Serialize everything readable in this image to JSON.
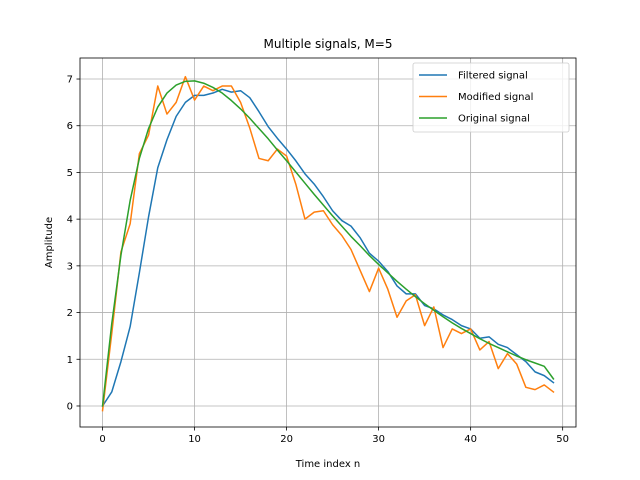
{
  "chart_data": {
    "type": "line",
    "title": "Multiple signals, M=5",
    "xlabel": "Time index n",
    "ylabel": "Amplitude",
    "xlim": [
      -2.45,
      51.45
    ],
    "ylim": [
      -0.45,
      7.45
    ],
    "xticks": [
      0,
      10,
      20,
      30,
      40,
      50
    ],
    "yticks": [
      0,
      1,
      2,
      3,
      4,
      5,
      6,
      7
    ],
    "grid": true,
    "legend_position": "top-right",
    "series": [
      {
        "name": "Filtered signal",
        "color": "#1f77b4",
        "x": [
          0,
          1,
          2,
          3,
          4,
          5,
          6,
          7,
          8,
          9,
          10,
          11,
          12,
          13,
          14,
          15,
          16,
          17,
          18,
          19,
          20,
          21,
          22,
          23,
          24,
          25,
          26,
          27,
          28,
          29,
          30,
          31,
          32,
          33,
          34,
          35,
          36,
          37,
          38,
          39,
          40,
          41,
          42,
          43,
          44,
          45,
          46,
          47,
          48,
          49
        ],
        "y": [
          0,
          0.3,
          0.95,
          1.7,
          2.85,
          4.05,
          5.1,
          5.7,
          6.2,
          6.5,
          6.65,
          6.65,
          6.7,
          6.78,
          6.72,
          6.75,
          6.6,
          6.3,
          5.98,
          5.73,
          5.5,
          5.25,
          4.97,
          4.75,
          4.48,
          4.18,
          3.97,
          3.85,
          3.6,
          3.27,
          3.1,
          2.88,
          2.57,
          2.4,
          2.4,
          2.15,
          2.08,
          1.95,
          1.85,
          1.72,
          1.65,
          1.45,
          1.48,
          1.32,
          1.25,
          1.1,
          0.95,
          0.73,
          0.65,
          0.5
        ]
      },
      {
        "name": "Modified signal",
        "color": "#ff7f0e",
        "x": [
          0,
          1,
          2,
          3,
          4,
          5,
          6,
          7,
          8,
          9,
          10,
          11,
          12,
          13,
          14,
          15,
          16,
          17,
          18,
          19,
          20,
          21,
          22,
          23,
          24,
          25,
          26,
          27,
          28,
          29,
          30,
          31,
          32,
          33,
          34,
          35,
          36,
          37,
          38,
          39,
          40,
          41,
          42,
          43,
          44,
          45,
          46,
          47,
          48,
          49
        ],
        "y": [
          -0.1,
          1.55,
          3.3,
          3.9,
          5.4,
          5.8,
          6.85,
          6.25,
          6.5,
          7.05,
          6.55,
          6.85,
          6.75,
          6.85,
          6.85,
          6.5,
          5.95,
          5.3,
          5.25,
          5.5,
          5.35,
          4.75,
          4.0,
          4.15,
          4.18,
          3.88,
          3.65,
          3.35,
          2.9,
          2.45,
          2.95,
          2.5,
          1.9,
          2.25,
          2.38,
          1.72,
          2.12,
          1.25,
          1.65,
          1.55,
          1.65,
          1.2,
          1.38,
          0.8,
          1.12,
          0.9,
          0.4,
          0.35,
          0.45,
          0.3
        ]
      },
      {
        "name": "Original signal",
        "color": "#2ca02c",
        "x": [
          0,
          1,
          2,
          3,
          4,
          5,
          6,
          7,
          8,
          9,
          10,
          11,
          12,
          13,
          14,
          15,
          16,
          17,
          18,
          19,
          20,
          21,
          22,
          23,
          24,
          25,
          26,
          27,
          28,
          29,
          30,
          31,
          32,
          33,
          34,
          35,
          36,
          37,
          38,
          39,
          40,
          41,
          42,
          43,
          44,
          45,
          46,
          47,
          48,
          49
        ],
        "y": [
          0,
          1.76,
          3.23,
          4.4,
          5.3,
          5.94,
          6.4,
          6.7,
          6.87,
          6.95,
          6.96,
          6.91,
          6.82,
          6.7,
          6.54,
          6.36,
          6.16,
          5.94,
          5.72,
          5.48,
          5.25,
          5.01,
          4.77,
          4.53,
          4.3,
          4.07,
          3.85,
          3.63,
          3.43,
          3.22,
          3.03,
          2.85,
          2.67,
          2.5,
          2.34,
          2.19,
          2.05,
          1.91,
          1.78,
          1.66,
          1.55,
          1.44,
          1.34,
          1.25,
          1.16,
          1.07,
          0.99,
          0.92,
          0.85,
          0.58
        ]
      }
    ]
  }
}
